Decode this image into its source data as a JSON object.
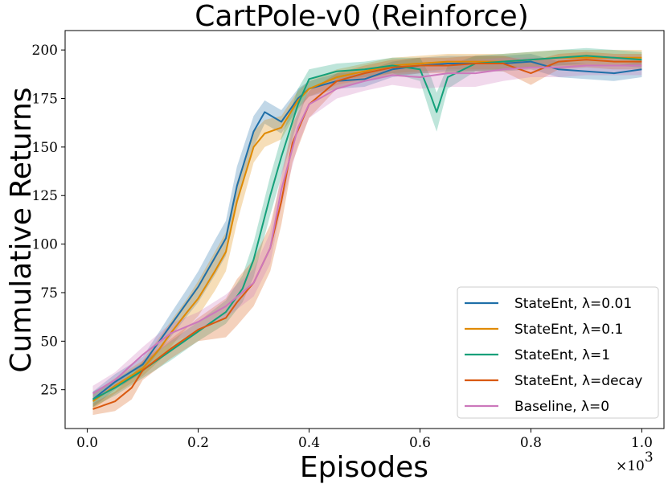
{
  "chart_data": {
    "type": "line",
    "title": "CartPole-v0 (Reinforce)",
    "xlabel": "Episodes",
    "ylabel": "Cumulative Returns",
    "x_multiplier": "×10",
    "x_multiplier_exp": "3",
    "xlim": [
      -0.04,
      1.04
    ],
    "ylim": [
      5,
      210
    ],
    "xticks": [
      0.0,
      0.2,
      0.4,
      0.6,
      0.8,
      1.0
    ],
    "xtick_labels": [
      "0.0",
      "0.2",
      "0.4",
      "0.6",
      "0.8",
      "1.0"
    ],
    "yticks": [
      25,
      50,
      75,
      100,
      125,
      150,
      175,
      200
    ],
    "ytick_labels": [
      "25",
      "50",
      "75",
      "100",
      "125",
      "150",
      "175",
      "200"
    ],
    "legend_position": "lower-right",
    "series": [
      {
        "name": "StateEnt, λ=0.01",
        "color": "#1f6fa8",
        "x": [
          0.01,
          0.05,
          0.1,
          0.13,
          0.15,
          0.18,
          0.2,
          0.23,
          0.25,
          0.27,
          0.3,
          0.32,
          0.35,
          0.38,
          0.4,
          0.45,
          0.5,
          0.55,
          0.6,
          0.65,
          0.7,
          0.75,
          0.8,
          0.85,
          0.9,
          0.95,
          1.0
        ],
        "mean": [
          20,
          29,
          38,
          50,
          58,
          70,
          78,
          93,
          103,
          130,
          158,
          168,
          163,
          175,
          180,
          184,
          185,
          190,
          192,
          193,
          193,
          193,
          194,
          190,
          189,
          188,
          190
        ],
        "lower": [
          16,
          25,
          34,
          45,
          52,
          63,
          70,
          84,
          94,
          120,
          150,
          162,
          157,
          170,
          176,
          180,
          181,
          186,
          188,
          189,
          189,
          189,
          190,
          186,
          185,
          184,
          186
        ],
        "upper": [
          24,
          33,
          42,
          55,
          64,
          77,
          86,
          102,
          112,
          140,
          166,
          174,
          169,
          180,
          184,
          188,
          189,
          194,
          196,
          197,
          197,
          197,
          198,
          194,
          193,
          192,
          194
        ]
      },
      {
        "name": "StateEnt, λ=0.1",
        "color": "#e08a00",
        "x": [
          0.01,
          0.05,
          0.1,
          0.13,
          0.15,
          0.18,
          0.2,
          0.23,
          0.25,
          0.27,
          0.3,
          0.32,
          0.35,
          0.38,
          0.4,
          0.45,
          0.5,
          0.55,
          0.6,
          0.65,
          0.7,
          0.75,
          0.8,
          0.85,
          0.9,
          0.95,
          1.0
        ],
        "mean": [
          19,
          27,
          36,
          46,
          54,
          65,
          72,
          86,
          96,
          122,
          150,
          157,
          160,
          174,
          180,
          186,
          189,
          192,
          193,
          194,
          194,
          194,
          195,
          196,
          196,
          196,
          196
        ],
        "lower": [
          15,
          23,
          32,
          40,
          47,
          57,
          63,
          76,
          86,
          111,
          142,
          150,
          154,
          169,
          176,
          182,
          185,
          188,
          189,
          190,
          190,
          190,
          191,
          192,
          192,
          192,
          192
        ],
        "upper": [
          23,
          31,
          40,
          52,
          60,
          72,
          81,
          96,
          106,
          132,
          158,
          164,
          166,
          179,
          184,
          190,
          193,
          196,
          197,
          198,
          198,
          198,
          199,
          200,
          200,
          200,
          200
        ]
      },
      {
        "name": "StateEnt, λ=1",
        "color": "#14a07a",
        "x": [
          0.01,
          0.05,
          0.1,
          0.15,
          0.2,
          0.25,
          0.28,
          0.3,
          0.33,
          0.35,
          0.38,
          0.4,
          0.45,
          0.5,
          0.55,
          0.6,
          0.62,
          0.63,
          0.65,
          0.7,
          0.75,
          0.8,
          0.85,
          0.9,
          0.95,
          1.0
        ],
        "mean": [
          20,
          26,
          35,
          45,
          55,
          65,
          77,
          92,
          125,
          145,
          172,
          185,
          189,
          190,
          192,
          190,
          176,
          168,
          186,
          193,
          194,
          195,
          196,
          197,
          196,
          195
        ],
        "lower": [
          16,
          22,
          31,
          40,
          50,
          59,
          70,
          83,
          115,
          135,
          164,
          180,
          185,
          186,
          188,
          184,
          166,
          158,
          180,
          189,
          190,
          191,
          192,
          193,
          192,
          191
        ],
        "upper": [
          24,
          30,
          39,
          50,
          60,
          71,
          84,
          101,
          135,
          155,
          180,
          190,
          193,
          194,
          196,
          196,
          186,
          178,
          192,
          197,
          198,
          199,
          200,
          201,
          200,
          199
        ]
      },
      {
        "name": "StateEnt, λ=decay",
        "color": "#d9590f",
        "x": [
          0.01,
          0.05,
          0.08,
          0.1,
          0.15,
          0.2,
          0.25,
          0.27,
          0.3,
          0.33,
          0.35,
          0.37,
          0.4,
          0.45,
          0.5,
          0.55,
          0.6,
          0.65,
          0.7,
          0.75,
          0.8,
          0.85,
          0.9,
          0.95,
          1.0
        ],
        "mean": [
          15,
          19,
          26,
          35,
          46,
          56,
          62,
          70,
          80,
          98,
          122,
          152,
          172,
          184,
          188,
          191,
          192,
          192,
          193,
          193,
          188,
          194,
          195,
          194,
          194
        ],
        "lower": [
          12,
          14,
          20,
          30,
          41,
          50,
          52,
          58,
          68,
          86,
          110,
          142,
          165,
          180,
          184,
          187,
          188,
          188,
          189,
          189,
          182,
          190,
          191,
          190,
          190
        ],
        "upper": [
          18,
          24,
          32,
          40,
          51,
          62,
          72,
          82,
          92,
          110,
          134,
          162,
          179,
          188,
          192,
          195,
          196,
          196,
          197,
          197,
          194,
          198,
          199,
          198,
          198
        ]
      },
      {
        "name": "Baseline, λ=0",
        "color": "#cc78bc",
        "x": [
          0.01,
          0.05,
          0.1,
          0.15,
          0.2,
          0.25,
          0.3,
          0.33,
          0.35,
          0.38,
          0.4,
          0.45,
          0.5,
          0.55,
          0.6,
          0.65,
          0.7,
          0.75,
          0.8,
          0.85,
          0.9,
          0.95,
          1.0
        ],
        "mean": [
          23,
          30,
          43,
          54,
          60,
          68,
          80,
          98,
          128,
          160,
          172,
          180,
          184,
          187,
          186,
          188,
          188,
          190,
          191,
          191,
          192,
          192,
          192
        ],
        "lower": [
          19,
          26,
          39,
          49,
          55,
          62,
          73,
          90,
          119,
          151,
          165,
          175,
          179,
          182,
          180,
          181,
          181,
          184,
          186,
          186,
          187,
          187,
          187
        ],
        "upper": [
          27,
          34,
          47,
          59,
          65,
          74,
          87,
          106,
          137,
          169,
          179,
          185,
          189,
          192,
          192,
          195,
          195,
          196,
          196,
          196,
          197,
          197,
          197
        ]
      }
    ]
  }
}
